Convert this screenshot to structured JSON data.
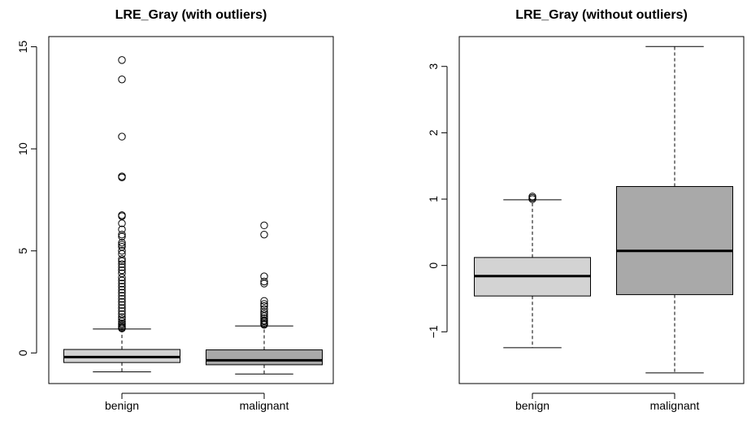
{
  "chart_data": [
    {
      "type": "boxplot",
      "title": "LRE_Gray (with outliers)",
      "xlabel": "",
      "ylabel": "",
      "ylim": [
        -1.5,
        15.5
      ],
      "yticks": [
        0,
        5,
        10,
        15
      ],
      "yticklabels": [
        "0",
        "5",
        "10",
        "15"
      ],
      "categories": [
        "benign",
        "malignant"
      ],
      "fill_colors": [
        "#d3d3d3",
        "#a9a9a9"
      ],
      "boxes": [
        {
          "name": "benign",
          "whisker_low": -0.93,
          "q1": -0.47,
          "median": -0.2,
          "q3": 0.17,
          "whisker_high": 1.17,
          "outliers": [
            14.35,
            13.4,
            10.6,
            8.65,
            8.6,
            6.75,
            6.7,
            6.35,
            6.05,
            5.8,
            5.7,
            5.4,
            5.3,
            5.2,
            5.0,
            4.85,
            4.6,
            4.5,
            4.35,
            4.2,
            4.05,
            3.9,
            3.7,
            3.55,
            3.4,
            3.25,
            3.1,
            2.95,
            2.8,
            2.65,
            2.5,
            2.35,
            2.2,
            2.05,
            1.9,
            1.75,
            1.65,
            1.55,
            1.45,
            1.38,
            1.3,
            1.25,
            1.2
          ]
        },
        {
          "name": "malignant",
          "whisker_low": -1.03,
          "q1": -0.58,
          "median": -0.36,
          "q3": 0.15,
          "whisker_high": 1.32,
          "outliers": [
            6.25,
            5.8,
            3.75,
            3.5,
            3.4,
            2.55,
            2.4,
            2.3,
            2.15,
            2.0,
            1.9,
            1.8,
            1.7,
            1.6,
            1.55,
            1.48,
            1.42,
            1.38
          ]
        }
      ]
    },
    {
      "type": "boxplot",
      "title": "LRE_Gray (without outliers)",
      "xlabel": "",
      "ylabel": "",
      "ylim": [
        -1.78,
        3.45
      ],
      "yticks": [
        -1,
        0,
        1,
        2,
        3
      ],
      "yticklabels": [
        "−1",
        "0",
        "1",
        "2",
        "3"
      ],
      "categories": [
        "benign",
        "malignant"
      ],
      "fill_colors": [
        "#d3d3d3",
        "#a9a9a9"
      ],
      "boxes": [
        {
          "name": "benign",
          "whisker_low": -1.24,
          "q1": -0.46,
          "median": -0.16,
          "q3": 0.12,
          "whisker_high": 0.99,
          "outliers": [
            1.04,
            1.02,
            1.0
          ]
        },
        {
          "name": "malignant",
          "whisker_low": -1.62,
          "q1": -0.44,
          "median": 0.22,
          "q3": 1.19,
          "whisker_high": 3.3,
          "outliers": []
        }
      ]
    }
  ]
}
